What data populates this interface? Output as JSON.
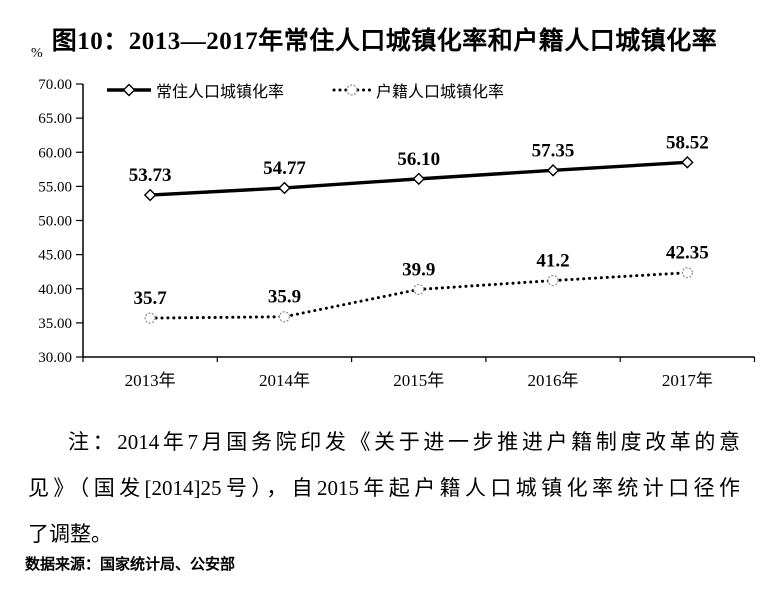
{
  "chart_data": {
    "type": "line",
    "title": "图10：2013—2017年常住人口城镇化率和户籍人口城镇化率",
    "unit_label": "%",
    "categories": [
      "2013年",
      "2014年",
      "2015年",
      "2016年",
      "2017年"
    ],
    "series": [
      {
        "name": "常住人口城镇化率",
        "line": "solid",
        "marker": "diamond",
        "values": [
          53.73,
          54.77,
          56.1,
          57.35,
          58.52
        ],
        "labels": [
          "53.73",
          "54.77",
          "56.10",
          "57.35",
          "58.52"
        ]
      },
      {
        "name": "户籍人口城镇化率",
        "line": "dotted",
        "marker": "circle",
        "values": [
          35.7,
          35.9,
          39.9,
          41.2,
          42.35
        ],
        "labels": [
          "35.7",
          "35.9",
          "39.9",
          "41.2",
          "42.35"
        ]
      }
    ],
    "ylim": [
      30,
      70
    ],
    "ytick_step": 5,
    "ytick_labels": [
      "30.00",
      "35.00",
      "40.00",
      "45.00",
      "50.00",
      "55.00",
      "60.00",
      "65.00",
      "70.00"
    ],
    "legend_position": "top-inside",
    "grid": false,
    "colors": {
      "line": "#000000",
      "marker_fill": "#ffffff",
      "circle_stroke": "#8a8a8a"
    }
  },
  "note": {
    "lines": [
      "注：2014年7月国务院印发《关于进一步推进户籍制度改革的意",
      "见》（国发[2014]25号），自2015年起户籍人口城镇化率统计口径作",
      "了调整。"
    ]
  },
  "source": {
    "text": "数据来源：国家统计局、公安部"
  }
}
